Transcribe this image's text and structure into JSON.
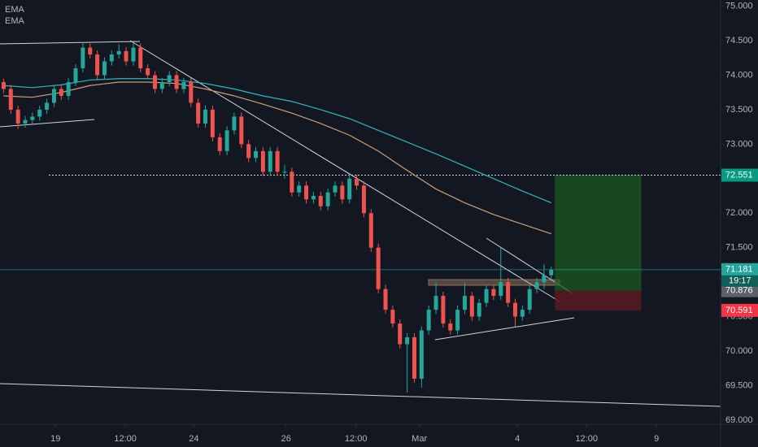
{
  "chart_data": {
    "type": "candlestick",
    "legend": [
      "EMA",
      "EMA"
    ],
    "up_color": "#26a69a",
    "down_color": "#ef5350",
    "xlim": [
      -0.5,
      99.5
    ],
    "ylim": [
      68.94,
      75.09
    ],
    "xticks": [
      {
        "value": 7.2,
        "label": "19"
      },
      {
        "value": 16.9,
        "label": "12:00"
      },
      {
        "value": 26.4,
        "label": "24"
      },
      {
        "value": 39.2,
        "label": "26"
      },
      {
        "value": 48.9,
        "label": "12:00"
      },
      {
        "value": 57.7,
        "label": "Mar"
      },
      {
        "value": 71.3,
        "label": "4"
      },
      {
        "value": 80.9,
        "label": "12:00"
      },
      {
        "value": 90.6,
        "label": "9"
      }
    ],
    "yticks": [
      {
        "value": 69,
        "label": "69.000"
      },
      {
        "value": 69.5,
        "label": "69.500"
      },
      {
        "value": 70,
        "label": "70.000"
      },
      {
        "value": 70.5,
        "label": "70.500"
      },
      {
        "value": 71,
        "label": "71.000"
      },
      {
        "value": 71.5,
        "label": "71.500"
      },
      {
        "value": 72,
        "label": "72.000"
      },
      {
        "value": 72.5,
        "label": "72.500"
      },
      {
        "value": 73,
        "label": "73.000"
      },
      {
        "value": 73.5,
        "label": "73.500"
      },
      {
        "value": 74,
        "label": "74.000"
      },
      {
        "value": 74.5,
        "label": "74.500"
      },
      {
        "value": 75,
        "label": "75.000"
      }
    ],
    "ohlc": [
      [
        73.9,
        73.95,
        73.74,
        73.8
      ],
      [
        73.8,
        73.86,
        73.44,
        73.5
      ],
      [
        73.5,
        73.56,
        73.22,
        73.3
      ],
      [
        73.3,
        73.41,
        73.24,
        73.35
      ],
      [
        73.35,
        73.46,
        73.29,
        73.4
      ],
      [
        73.4,
        73.56,
        73.34,
        73.5
      ],
      [
        73.5,
        73.66,
        73.44,
        73.6
      ],
      [
        73.6,
        73.86,
        73.54,
        73.8
      ],
      [
        73.8,
        73.86,
        73.64,
        73.7
      ],
      [
        73.7,
        73.96,
        73.64,
        73.9
      ],
      [
        73.9,
        74.16,
        73.84,
        74.1
      ],
      [
        74.1,
        74.48,
        74.04,
        74.4
      ],
      [
        74.4,
        74.46,
        74.24,
        74.3
      ],
      [
        74.3,
        74.36,
        73.94,
        74.0
      ],
      [
        74.0,
        74.26,
        73.94,
        74.2
      ],
      [
        74.2,
        74.36,
        74.14,
        74.3
      ],
      [
        74.3,
        74.45,
        74.24,
        74.35
      ],
      [
        74.35,
        74.41,
        74.14,
        74.2
      ],
      [
        74.2,
        74.46,
        74.14,
        74.4
      ],
      [
        74.4,
        74.46,
        74.04,
        74.1
      ],
      [
        74.1,
        74.16,
        73.94,
        74.0
      ],
      [
        74.0,
        74.06,
        73.74,
        73.8
      ],
      [
        73.8,
        73.96,
        73.74,
        73.9
      ],
      [
        73.9,
        74.06,
        73.84,
        74.0
      ],
      [
        74.0,
        74.06,
        73.74,
        73.8
      ],
      [
        73.8,
        73.96,
        73.74,
        73.9
      ],
      [
        73.9,
        73.96,
        73.54,
        73.6
      ],
      [
        73.6,
        73.66,
        73.24,
        73.3
      ],
      [
        73.3,
        73.56,
        73.24,
        73.5
      ],
      [
        73.5,
        73.56,
        73.04,
        73.1
      ],
      [
        73.1,
        73.16,
        72.84,
        72.9
      ],
      [
        72.9,
        73.26,
        72.84,
        73.2
      ],
      [
        73.2,
        73.46,
        73.14,
        73.4
      ],
      [
        73.4,
        73.46,
        72.94,
        73.0
      ],
      [
        73.0,
        73.06,
        72.74,
        72.8
      ],
      [
        72.8,
        72.96,
        72.74,
        72.9
      ],
      [
        72.9,
        72.96,
        72.54,
        72.6
      ],
      [
        72.6,
        72.96,
        72.54,
        72.9
      ],
      [
        72.9,
        72.96,
        72.54,
        72.6
      ],
      [
        72.6,
        72.7,
        72.5,
        72.6
      ],
      [
        72.6,
        72.66,
        72.24,
        72.3
      ],
      [
        72.3,
        72.46,
        72.24,
        72.4
      ],
      [
        72.4,
        72.46,
        72.14,
        72.2
      ],
      [
        72.2,
        72.31,
        72.14,
        72.25
      ],
      [
        72.25,
        72.31,
        72.04,
        72.1
      ],
      [
        72.1,
        72.36,
        72.04,
        72.3
      ],
      [
        72.3,
        72.46,
        72.24,
        72.4
      ],
      [
        72.4,
        72.46,
        72.14,
        72.2
      ],
      [
        72.2,
        72.56,
        72.14,
        72.5
      ],
      [
        72.5,
        72.56,
        72.34,
        72.4
      ],
      [
        72.4,
        72.46,
        71.94,
        72.0
      ],
      [
        72.0,
        72.06,
        71.44,
        71.5
      ],
      [
        71.5,
        71.56,
        70.84,
        70.9
      ],
      [
        70.9,
        70.96,
        70.54,
        70.6
      ],
      [
        70.6,
        70.66,
        70.34,
        70.4
      ],
      [
        70.4,
        70.46,
        70.04,
        70.1
      ],
      [
        70.1,
        70.26,
        69.4,
        70.2
      ],
      [
        70.2,
        70.26,
        69.54,
        69.6
      ],
      [
        69.6,
        70.36,
        69.47,
        70.3
      ],
      [
        70.3,
        70.66,
        70.24,
        70.6
      ],
      [
        70.6,
        71.0,
        70.54,
        70.8
      ],
      [
        70.8,
        70.86,
        70.34,
        70.4
      ],
      [
        70.4,
        70.46,
        70.24,
        70.3
      ],
      [
        70.3,
        70.66,
        70.24,
        70.6
      ],
      [
        70.6,
        71.0,
        70.54,
        70.8
      ],
      [
        70.8,
        70.86,
        70.44,
        70.5
      ],
      [
        70.5,
        70.76,
        70.44,
        70.7
      ],
      [
        70.7,
        70.96,
        70.64,
        70.9
      ],
      [
        70.9,
        70.96,
        70.74,
        70.8
      ],
      [
        70.8,
        71.5,
        70.74,
        71.0
      ],
      [
        71.0,
        71.06,
        70.64,
        70.7
      ],
      [
        70.7,
        70.76,
        70.35,
        70.5
      ],
      [
        70.5,
        70.66,
        70.44,
        70.6
      ],
      [
        70.6,
        70.96,
        70.54,
        70.9
      ],
      [
        70.9,
        71.06,
        70.84,
        71.0
      ],
      [
        71.0,
        71.26,
        70.9,
        71.1
      ],
      [
        71.1,
        71.23,
        71.04,
        71.181
      ]
    ],
    "series": [
      {
        "name": "EMA",
        "color": "#2fb8b8",
        "x": [
          0,
          4,
          8,
          12,
          16,
          20,
          24,
          28,
          32,
          36,
          40,
          44,
          48,
          52,
          56,
          60,
          64,
          68,
          72,
          76
        ],
        "values": [
          73.85,
          73.82,
          73.86,
          73.93,
          73.95,
          73.95,
          73.93,
          73.88,
          73.8,
          73.7,
          73.62,
          73.5,
          73.37,
          73.2,
          73.03,
          72.86,
          72.68,
          72.5,
          72.32,
          72.15
        ]
      },
      {
        "name": "EMA",
        "color": "#c8a27a",
        "x": [
          0,
          4,
          8,
          12,
          16,
          20,
          24,
          28,
          32,
          36,
          40,
          44,
          48,
          52,
          56,
          60,
          64,
          68,
          72,
          76
        ],
        "values": [
          73.7,
          73.68,
          73.75,
          73.85,
          73.9,
          73.9,
          73.88,
          73.8,
          73.7,
          73.58,
          73.45,
          73.3,
          73.13,
          72.9,
          72.62,
          72.35,
          72.15,
          71.98,
          71.84,
          71.7
        ]
      }
    ],
    "position": {
      "x_start": 76.5,
      "x_end": 88.5,
      "target": 72.551,
      "entry": 70.876,
      "stop": 70.591
    },
    "current_price": 71.181,
    "price_labels": [
      {
        "value": 72.551,
        "label": "72.551",
        "color": "#089981"
      },
      {
        "value": 71.181,
        "label": "71.181",
        "color": "#26a69a"
      },
      {
        "value": 70.876,
        "label": "70.876",
        "color": "#5d606b"
      },
      {
        "value": 70.591,
        "label": "70.591",
        "color": "#f23645"
      }
    ],
    "countdown": "19:17"
  }
}
